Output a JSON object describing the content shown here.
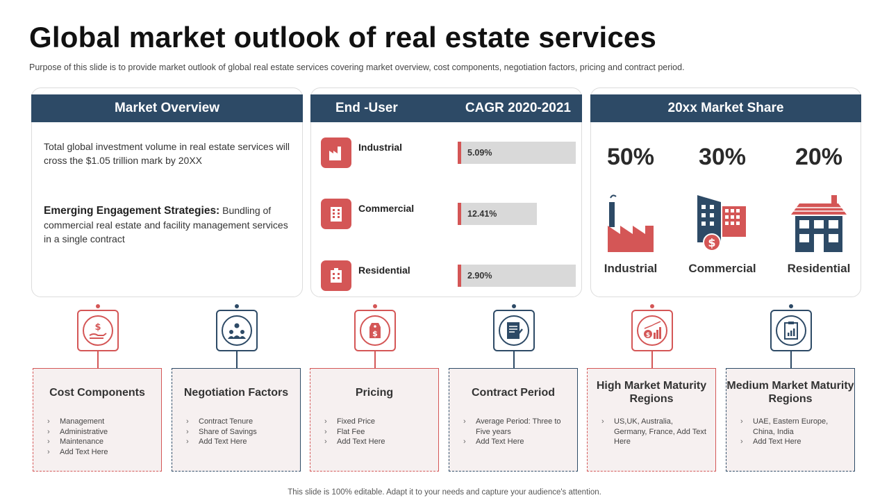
{
  "header": {
    "title": "Global market outlook of real estate services",
    "subtitle": "Purpose of this slide is to provide market outlook of global real estate services covering market overview, cost components, negotiation factors, pricing and contract period."
  },
  "market_overview": {
    "heading": "Market Overview",
    "paragraph1": "Total global investment volume in real estate services will cross the $1.05 trillion mark by 20XX",
    "strategy_label": "Emerging Engagement Strategies:",
    "strategy_text": "Bundling of commercial real estate and facility management services in a single contract"
  },
  "end_user": {
    "heading_left": "End -User",
    "heading_right": "CAGR 2020-2021",
    "rows": [
      {
        "label": "Industrial",
        "value": "5.09%",
        "bar_fraction": 1.0,
        "icon": "factory-icon"
      },
      {
        "label": "Commercial",
        "value": "12.41%",
        "bar_fraction": 0.67,
        "icon": "office-building-icon"
      },
      {
        "label": "Residential",
        "value": "2.90%",
        "bar_fraction": 1.0,
        "icon": "apartment-icon"
      }
    ]
  },
  "market_share": {
    "heading": "20xx Market Share",
    "items": [
      {
        "percent": "50%",
        "label": "Industrial",
        "icon": "factory-icon"
      },
      {
        "percent": "30%",
        "label": "Commercial",
        "icon": "office-building-icon"
      },
      {
        "percent": "20%",
        "label": "Residential",
        "icon": "house-icon"
      }
    ]
  },
  "cards": [
    {
      "title": "Cost Components",
      "icon": "money-hand-icon",
      "items": [
        "Management",
        "Administrative",
        "Maintenance",
        "Add Text Here"
      ]
    },
    {
      "title": "Negotiation Factors",
      "icon": "team-network-icon",
      "items": [
        "Contract Tenure",
        "Share of Savings",
        "Add Text Here"
      ]
    },
    {
      "title": "Pricing",
      "icon": "price-tag-icon",
      "items": [
        "Fixed Price",
        "Flat Fee",
        "Add Text Here"
      ]
    },
    {
      "title": "Contract Period",
      "icon": "contract-document-icon",
      "items": [
        "Average Period: Three to Five years",
        "Add Text Here"
      ]
    },
    {
      "title": "High Market Maturity Regions",
      "icon": "growth-chart-icon",
      "items": [
        "US,UK, Australia, Germany, France, Add Text Here"
      ]
    },
    {
      "title": "Medium Market Maturity Regions",
      "icon": "clipboard-chart-icon",
      "items": [
        "UAE, Eastern Europe, China, India",
        "Add Text Here"
      ]
    }
  ],
  "colors": {
    "accent_red": "#d45656",
    "navy": "#2d4a66",
    "card_bg": "#f6f0f0"
  },
  "footer": "This slide is 100% editable. Adapt it to your needs and capture your audience's attention."
}
